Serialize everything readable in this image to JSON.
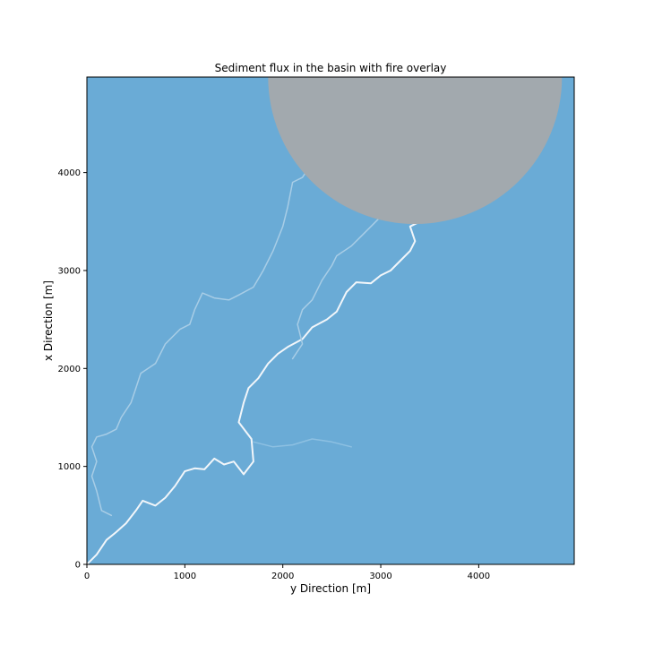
{
  "chart_data": {
    "type": "heatmap",
    "title": "Sediment flux in the basin with fire overlay",
    "xlabel": "y Direction [m]",
    "ylabel": "x Direction [m]",
    "xlim": [
      0,
      4975
    ],
    "ylim": [
      0,
      4975
    ],
    "xticks": [
      0,
      1000,
      2000,
      3000,
      4000
    ],
    "yticks": [
      0,
      1000,
      2000,
      3000,
      4000
    ],
    "grid": false,
    "background_color": "#6aabd6",
    "fire_overlay": {
      "shape": "circle",
      "center": [
        3350,
        4975
      ],
      "radius": 1500,
      "color": "#a2a9ae"
    },
    "channels": [
      {
        "name": "main channel",
        "color": "#f2f6fa",
        "points": [
          [
            0,
            0
          ],
          [
            100,
            100
          ],
          [
            200,
            250
          ],
          [
            300,
            330
          ],
          [
            400,
            420
          ],
          [
            500,
            550
          ],
          [
            570,
            650
          ],
          [
            700,
            600
          ],
          [
            800,
            680
          ],
          [
            900,
            800
          ],
          [
            1000,
            950
          ],
          [
            1100,
            980
          ],
          [
            1200,
            970
          ],
          [
            1300,
            1080
          ],
          [
            1400,
            1020
          ],
          [
            1500,
            1050
          ],
          [
            1600,
            920
          ],
          [
            1700,
            1050
          ],
          [
            1680,
            1280
          ],
          [
            1550,
            1450
          ],
          [
            1600,
            1650
          ],
          [
            1650,
            1800
          ],
          [
            1750,
            1900
          ],
          [
            1850,
            2050
          ],
          [
            1950,
            2150
          ],
          [
            2050,
            2220
          ],
          [
            2200,
            2300
          ],
          [
            2300,
            2420
          ],
          [
            2450,
            2500
          ],
          [
            2550,
            2580
          ],
          [
            2650,
            2780
          ],
          [
            2750,
            2880
          ],
          [
            2900,
            2870
          ],
          [
            3000,
            2950
          ],
          [
            3100,
            3000
          ],
          [
            3200,
            3100
          ],
          [
            3300,
            3200
          ],
          [
            3350,
            3300
          ],
          [
            3300,
            3450
          ],
          [
            3400,
            3500
          ]
        ]
      },
      {
        "name": "tributary west",
        "color": "#a8cde6",
        "points": [
          [
            250,
            500
          ],
          [
            150,
            550
          ],
          [
            100,
            750
          ],
          [
            50,
            900
          ],
          [
            100,
            1050
          ],
          [
            50,
            1200
          ],
          [
            100,
            1300
          ],
          [
            200,
            1330
          ],
          [
            300,
            1380
          ],
          [
            350,
            1500
          ],
          [
            450,
            1650
          ],
          [
            500,
            1800
          ],
          [
            550,
            1950
          ],
          [
            700,
            2050
          ],
          [
            800,
            2250
          ],
          [
            950,
            2400
          ],
          [
            1050,
            2450
          ],
          [
            1100,
            2600
          ],
          [
            1180,
            2770
          ],
          [
            1300,
            2720
          ],
          [
            1450,
            2700
          ],
          [
            1550,
            2750
          ],
          [
            1700,
            2830
          ],
          [
            1800,
            3000
          ],
          [
            1900,
            3200
          ],
          [
            2000,
            3450
          ],
          [
            2050,
            3650
          ],
          [
            2100,
            3900
          ],
          [
            2200,
            3950
          ],
          [
            2300,
            4100
          ],
          [
            2450,
            4300
          ],
          [
            2600,
            4500
          ]
        ]
      },
      {
        "name": "tributary east",
        "color": "#a8cde6",
        "points": [
          [
            2100,
            2100
          ],
          [
            2200,
            2250
          ],
          [
            2150,
            2450
          ],
          [
            2200,
            2600
          ],
          [
            2300,
            2700
          ],
          [
            2350,
            2800
          ],
          [
            2400,
            2900
          ],
          [
            2500,
            3050
          ],
          [
            2550,
            3150
          ],
          [
            2700,
            3250
          ],
          [
            2800,
            3350
          ],
          [
            2900,
            3450
          ],
          [
            3000,
            3550
          ],
          [
            3100,
            3600
          ],
          [
            3300,
            3550
          ],
          [
            3500,
            3650
          ],
          [
            3600,
            3550
          ],
          [
            3750,
            3550
          ],
          [
            3800,
            3700
          ],
          [
            3700,
            3900
          ],
          [
            3800,
            4100
          ],
          [
            3900,
            4300
          ],
          [
            4000,
            4450
          ]
        ]
      },
      {
        "name": "tributary lower",
        "color": "#8dc0e2",
        "points": [
          [
            1700,
            1250
          ],
          [
            1900,
            1200
          ],
          [
            2100,
            1220
          ],
          [
            2300,
            1280
          ],
          [
            2500,
            1250
          ],
          [
            2700,
            1200
          ]
        ]
      }
    ]
  }
}
